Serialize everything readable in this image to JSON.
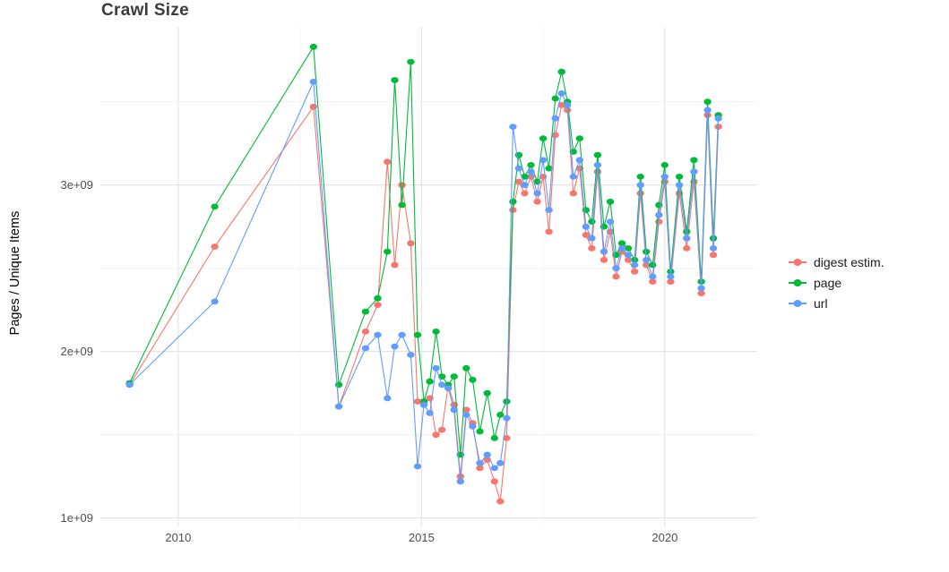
{
  "chart_data": {
    "type": "line",
    "title": "Crawl Size",
    "xlabel": "",
    "ylabel": "Pages / Unique Items",
    "legend_position": "right",
    "grid": true,
    "background": "#ffffff",
    "grid_major_color": "#e3e3e3",
    "grid_minor_color": "#f0f0f0",
    "axis_text_color": "#4d4d4d",
    "xlim": [
      2008.4,
      2021.9
    ],
    "ylim_billions": [
      0.95,
      3.95
    ],
    "x_ticks": [
      2010,
      2015,
      2020
    ],
    "x_tick_labels": [
      "2010",
      "2015",
      "2020"
    ],
    "y_ticks_billions": [
      1,
      2,
      3
    ],
    "y_tick_labels": [
      "1e+09",
      "2e+09",
      "3e+09"
    ],
    "minor_x_ticks": [
      2012.5,
      2017.5
    ],
    "minor_y_ticks_billions": [
      1.5,
      2.5,
      3.5
    ],
    "values_unit": "items (x 1e9)",
    "x": [
      2009.0,
      2010.75,
      2012.78,
      2013.3,
      2013.85,
      2014.1,
      2014.3,
      2014.45,
      2014.6,
      2014.78,
      2014.92,
      2015.05,
      2015.17,
      2015.3,
      2015.42,
      2015.55,
      2015.67,
      2015.8,
      2015.92,
      2016.05,
      2016.2,
      2016.35,
      2016.5,
      2016.62,
      2016.75,
      2016.88,
      2017.0,
      2017.12,
      2017.25,
      2017.38,
      2017.5,
      2017.62,
      2017.75,
      2017.88,
      2018.0,
      2018.12,
      2018.25,
      2018.38,
      2018.5,
      2018.62,
      2018.75,
      2018.88,
      2019.0,
      2019.12,
      2019.25,
      2019.38,
      2019.5,
      2019.62,
      2019.75,
      2019.88,
      2020.0,
      2020.12,
      2020.3,
      2020.45,
      2020.6,
      2020.75,
      2020.88,
      2021.0,
      2021.1
    ],
    "series": [
      {
        "name": "digest estim.",
        "color": "#F8766D",
        "values_billions": [
          1.8,
          2.63,
          3.47,
          1.67,
          2.12,
          2.28,
          3.14,
          2.52,
          3.0,
          2.65,
          1.7,
          1.68,
          1.72,
          1.5,
          1.53,
          1.8,
          1.68,
          1.25,
          1.65,
          1.57,
          1.3,
          1.35,
          1.22,
          1.1,
          1.48,
          2.85,
          3.02,
          2.95,
          3.05,
          2.9,
          3.05,
          2.72,
          3.3,
          3.48,
          3.45,
          2.95,
          3.1,
          2.7,
          2.62,
          3.08,
          2.55,
          2.72,
          2.45,
          2.6,
          2.55,
          2.48,
          2.95,
          2.52,
          2.42,
          2.78,
          3.02,
          2.42,
          2.95,
          2.62,
          3.02,
          2.35,
          3.42,
          2.58,
          3.35
        ]
      },
      {
        "name": "page",
        "color": "#00BA38",
        "values_billions": [
          1.81,
          2.87,
          3.83,
          1.8,
          2.24,
          2.32,
          2.6,
          3.63,
          2.88,
          3.74,
          2.1,
          1.7,
          1.82,
          2.12,
          1.85,
          1.8,
          1.85,
          1.38,
          1.9,
          1.83,
          1.52,
          1.75,
          1.48,
          1.62,
          1.7,
          2.9,
          3.18,
          3.05,
          3.12,
          3.02,
          3.28,
          3.1,
          3.52,
          3.68,
          3.5,
          3.2,
          3.28,
          2.85,
          2.78,
          3.18,
          2.75,
          2.9,
          2.58,
          2.65,
          2.62,
          2.55,
          3.05,
          2.6,
          2.52,
          2.88,
          3.12,
          2.48,
          3.05,
          2.72,
          3.15,
          2.42,
          3.5,
          2.68,
          3.42
        ]
      },
      {
        "name": "url",
        "color": "#619CFF",
        "values_billions": [
          1.8,
          2.3,
          3.62,
          1.67,
          2.02,
          2.1,
          1.72,
          2.03,
          2.1,
          1.98,
          1.31,
          1.68,
          1.63,
          1.9,
          1.8,
          1.78,
          1.65,
          1.22,
          1.62,
          1.55,
          1.33,
          1.38,
          1.3,
          1.33,
          1.6,
          3.35,
          3.1,
          3.0,
          3.08,
          2.95,
          3.15,
          2.85,
          3.4,
          3.55,
          3.48,
          3.05,
          3.15,
          2.75,
          2.68,
          3.12,
          2.6,
          2.78,
          2.5,
          2.62,
          2.58,
          2.52,
          3.0,
          2.55,
          2.45,
          2.82,
          3.05,
          2.45,
          3.0,
          2.68,
          3.08,
          2.38,
          3.45,
          2.62,
          3.4
        ]
      }
    ]
  }
}
